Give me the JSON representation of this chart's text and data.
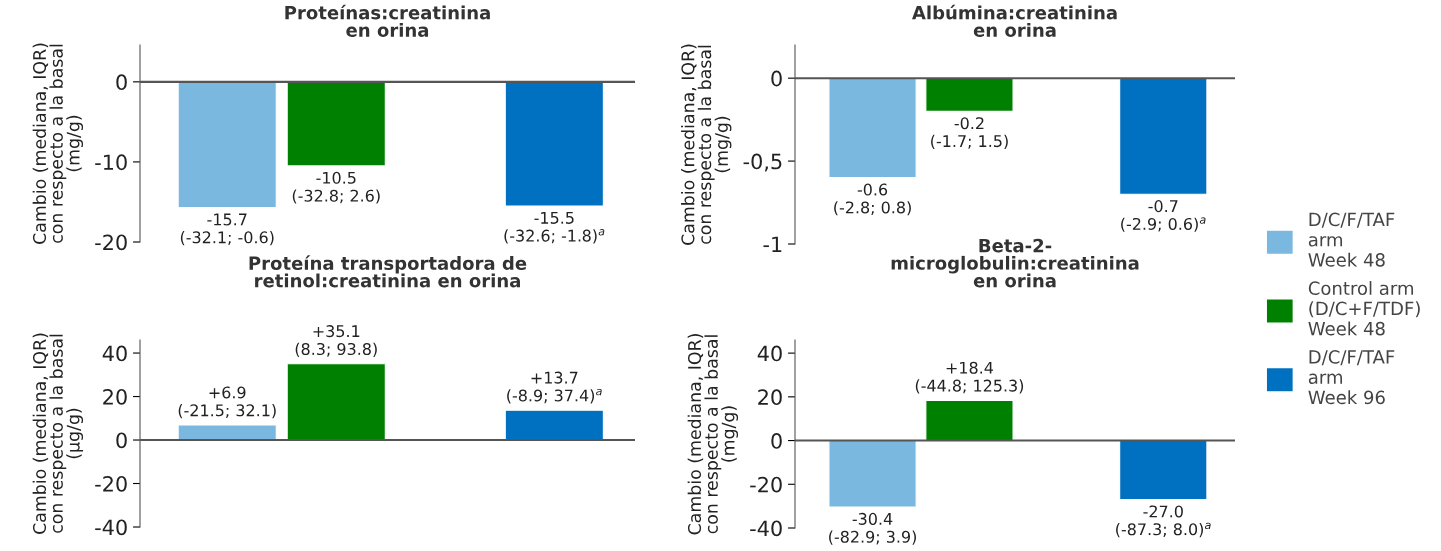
{
  "chart_data": [
    {
      "type": "bar",
      "title": "Proteínas:creatinina\nen orina",
      "ylabel": "Cambio (mediana, IQR)\ncon respecto a la basal\n(mg/g)",
      "categories": [
        null,
        null,
        null,
        null
      ],
      "ylim": [
        -20,
        4.6
      ],
      "yticks": [
        0,
        -10,
        -20
      ],
      "tick_labels": "y",
      "grid": false,
      "ref_lines": [
        {
          "axis": "y",
          "value": 0,
          "color": "#555555"
        }
      ],
      "series": [
        {
          "color": "#7ab8e0",
          "values": [
            -15.7,
            null,
            null,
            null
          ],
          "value_labels": [
            "-15.7\n(-32.1; -0.6)",
            null,
            null,
            null
          ]
        },
        {
          "color": "#008000",
          "values": [
            null,
            -10.5,
            null,
            null
          ],
          "value_labels": [
            null,
            "-10.5\n(-32.8; 2.6)",
            null,
            null
          ]
        },
        {
          "color": "#0070c0",
          "values": [
            null,
            null,
            null,
            -15.5
          ],
          "value_labels": [
            null,
            null,
            null,
            "-15.5\n(-32.6; -1.8)$^{a}$"
          ]
        }
      ]
    },
    {
      "type": "bar",
      "title": "Albúmina:creatinina\nen orina",
      "ylabel": "Cambio (mediana, IQR)\ncon respecto a la basal\n(mg/g)",
      "categories": [
        null,
        null,
        null,
        null
      ],
      "ylim": [
        -1,
        0.2
      ],
      "yticks": [
        0,
        {
          "value": -0.5,
          "label": "-0,5"
        },
        -1
      ],
      "tick_labels": "y",
      "grid": false,
      "legend": "right",
      "ref_lines": [
        {
          "axis": "y",
          "value": 0,
          "color": "#555555"
        }
      ],
      "series": [
        {
          "name": "D/C/F/TAF\narm\nWeek 48",
          "color": "#7ab8e0",
          "values": [
            -0.6,
            null,
            null,
            null
          ],
          "value_labels": [
            "-0.6\n(-2.8; 0.8)",
            null,
            null,
            null
          ]
        },
        {
          "name": "Control arm\n(D/C+F/TDF)\nWeek 48",
          "color": "#008000",
          "values": [
            null,
            -0.2,
            null,
            null
          ],
          "value_labels": [
            null,
            "-0.2\n(-1.7; 1.5)",
            null,
            null
          ]
        },
        {
          "name": "D/C/F/TAF\narm\nWeek 96",
          "color": "#0070c0",
          "values": [
            null,
            null,
            null,
            -0.7
          ],
          "value_labels": [
            null,
            null,
            null,
            "-0.7\n(-2.9; 0.6)$^{a}$"
          ]
        }
      ]
    },
    {
      "type": "bar",
      "title": "Proteína transportadora de\nretinol:creatinina en orina",
      "ylabel": "Cambio (mediana, IQR)\ncon respecto a la basal\n(µg/g)",
      "categories": [
        null,
        null,
        null,
        null
      ],
      "ylim": [
        -40,
        46
      ],
      "yticks": [
        40,
        20,
        0,
        -20,
        -40
      ],
      "tick_labels": "y",
      "grid": false,
      "ref_lines": [
        {
          "axis": "y",
          "value": 0,
          "color": "#555555"
        }
      ],
      "series": [
        {
          "color": "#7ab8e0",
          "values": [
            6.9,
            null,
            null,
            null
          ],
          "value_labels": [
            "+6.9\n(-21.5; 32.1)",
            null,
            null,
            null
          ]
        },
        {
          "color": "#008000",
          "values": [
            null,
            35.1,
            null,
            null
          ],
          "value_labels": [
            null,
            "+35.1\n(8.3; 93.8)",
            null,
            null
          ]
        },
        {
          "color": "#0070c0",
          "values": [
            null,
            null,
            null,
            13.7
          ],
          "value_labels": [
            null,
            null,
            null,
            "+13.7\n(-8.9; 37.4)$^{a}$"
          ]
        }
      ]
    },
    {
      "type": "bar",
      "title": "Beta-2-\nmicroglobulin:creatinina\nen orina",
      "ylabel": "Cambio (mediana, IQR)\ncon respecto a la basal\n(mg/g)",
      "categories": [
        null,
        null,
        null,
        null
      ],
      "ylim": [
        -40,
        46
      ],
      "yticks": [
        40,
        20,
        0,
        -20,
        -40
      ],
      "tick_labels": "y",
      "grid": false,
      "ref_lines": [
        {
          "axis": "y",
          "value": 0,
          "color": "#555555"
        }
      ],
      "series": [
        {
          "color": "#7ab8e0",
          "values": [
            -30.4,
            null,
            null,
            null
          ],
          "value_labels": [
            "-30.4\n(-82.9; 3.9)",
            null,
            null,
            null
          ]
        },
        {
          "color": "#008000",
          "values": [
            null,
            18.4,
            null,
            null
          ],
          "value_labels": [
            null,
            "+18.4\n(-44.8; 125.3)",
            null,
            null
          ]
        },
        {
          "color": "#0070c0",
          "values": [
            null,
            null,
            null,
            -27.0
          ],
          "value_labels": [
            null,
            null,
            null,
            "-27.0\n(-87.3; 8.0)$^{a}$"
          ]
        }
      ]
    }
  ]
}
